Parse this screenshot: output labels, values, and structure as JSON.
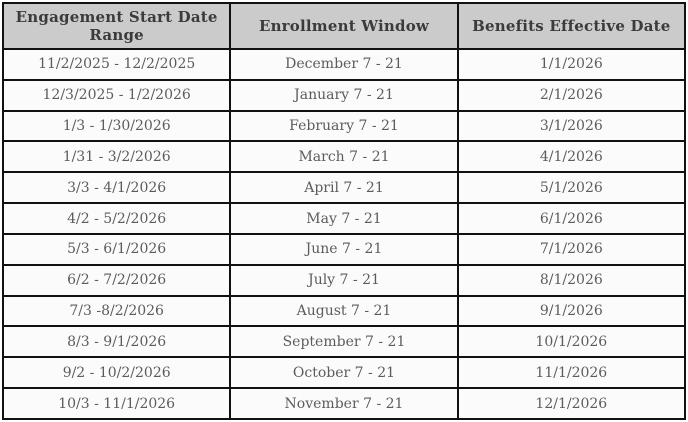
{
  "table": {
    "headers": [
      "Engagement Start Date Range",
      "Enrollment Window",
      "Benefits Effective Date"
    ],
    "rows": [
      [
        "11/2/2025 - 12/2/2025",
        "December 7 - 21",
        "1/1/2026"
      ],
      [
        "12/3/2025 - 1/2/2026",
        "January 7 - 21",
        "2/1/2026"
      ],
      [
        "1/3 - 1/30/2026",
        "February 7 - 21",
        "3/1/2026"
      ],
      [
        "1/31 - 3/2/2026",
        "March 7 - 21",
        "4/1/2026"
      ],
      [
        "3/3 - 4/1/2026",
        "April 7 - 21",
        "5/1/2026"
      ],
      [
        "4/2 - 5/2/2026",
        "May 7 - 21",
        "6/1/2026"
      ],
      [
        "5/3 - 6/1/2026",
        "June 7 - 21",
        "7/1/2026"
      ],
      [
        "6/2 - 7/2/2026",
        "July 7 - 21",
        "8/1/2026"
      ],
      [
        "7/3 -8/2/2026",
        "August 7 - 21",
        "9/1/2026"
      ],
      [
        "8/3 - 9/1/2026",
        "September 7 - 21",
        "10/1/2026"
      ],
      [
        "9/2 - 10/2/2026",
        "October 7 - 21",
        "11/1/2026"
      ],
      [
        "10/3 - 11/1/2026",
        "November 7 - 21",
        "12/1/2026"
      ]
    ],
    "colors": {
      "header_bg": "#cbcbcb",
      "header_text": "#3b3b3b",
      "row_bg": "#fbfbfb",
      "row_text": "#5c5c5c",
      "border": "#111111"
    }
  }
}
